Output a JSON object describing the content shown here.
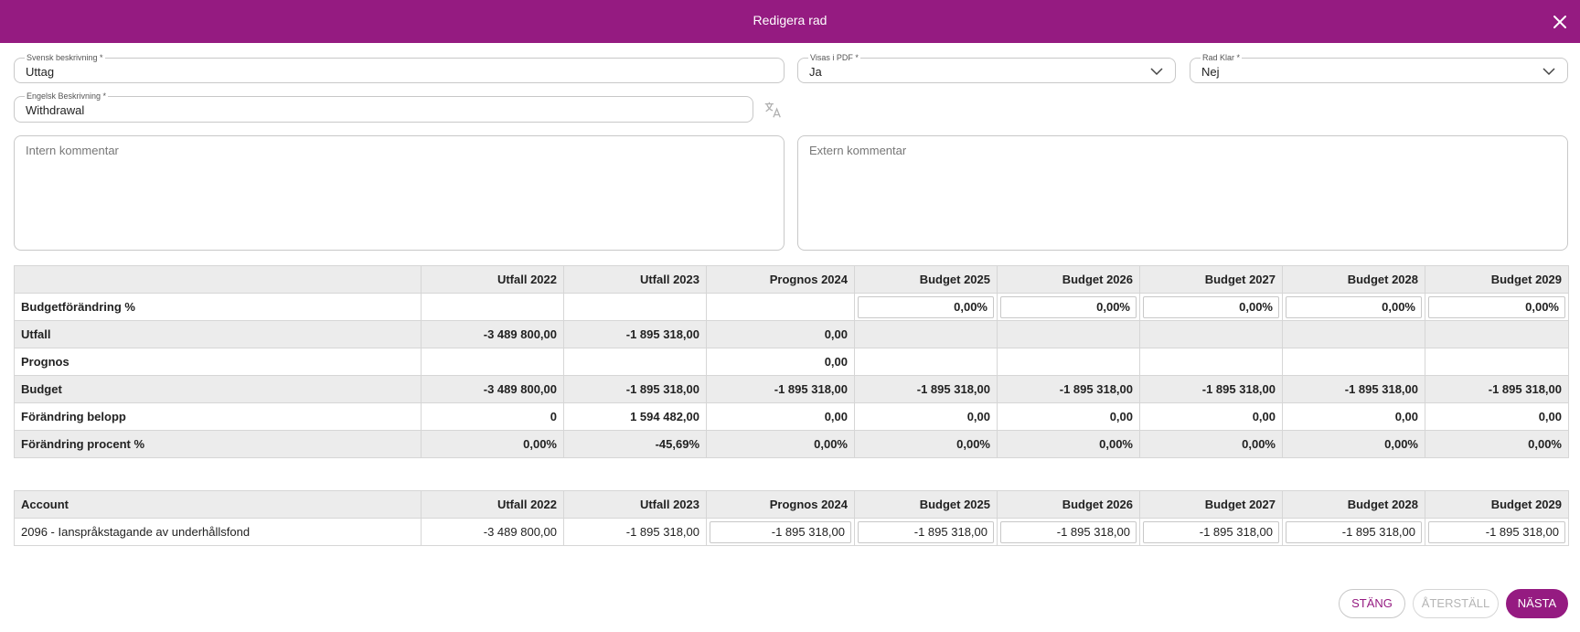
{
  "dialog": {
    "title": "Redigera rad"
  },
  "fields": {
    "svensk": {
      "label": "Svensk beskrivning *",
      "value": "Uttag"
    },
    "pdf": {
      "label": "Visas i PDF *",
      "value": "Ja"
    },
    "klar": {
      "label": "Rad Klar *",
      "value": "Nej"
    },
    "engelsk": {
      "label": "Engelsk Beskrivning *",
      "value": "Withdrawal"
    },
    "intern": {
      "placeholder": "Intern kommentar"
    },
    "extern": {
      "placeholder": "Extern kommentar"
    }
  },
  "summary": {
    "headers": [
      "",
      "Utfall 2022",
      "Utfall 2023",
      "Prognos 2024",
      "Budget 2025",
      "Budget 2026",
      "Budget 2027",
      "Budget 2028",
      "Budget 2029"
    ],
    "rows": [
      {
        "label": "Budgetförändring %",
        "cells": [
          "",
          "",
          "",
          "0,00%",
          "0,00%",
          "0,00%",
          "0,00%",
          "0,00%"
        ]
      },
      {
        "label": "Utfall",
        "cells": [
          "-3 489 800,00",
          "-1 895 318,00",
          "0,00",
          "",
          "",
          "",
          "",
          ""
        ]
      },
      {
        "label": "Prognos",
        "cells": [
          "",
          "",
          "0,00",
          "",
          "",
          "",
          "",
          ""
        ]
      },
      {
        "label": "Budget",
        "cells": [
          "-3 489 800,00",
          "-1 895 318,00",
          "-1 895 318,00",
          "-1 895 318,00",
          "-1 895 318,00",
          "-1 895 318,00",
          "-1 895 318,00",
          "-1 895 318,00"
        ]
      },
      {
        "label": "Förändring belopp",
        "cells": [
          "0",
          "1 594 482,00",
          "0,00",
          "0,00",
          "0,00",
          "0,00",
          "0,00",
          "0,00"
        ]
      },
      {
        "label": "Förändring procent %",
        "cells": [
          "0,00%",
          "-45,69%",
          "0,00%",
          "0,00%",
          "0,00%",
          "0,00%",
          "0,00%",
          "0,00%"
        ]
      }
    ]
  },
  "accounts": {
    "headers": [
      "Account",
      "Utfall 2022",
      "Utfall 2023",
      "Prognos 2024",
      "Budget 2025",
      "Budget 2026",
      "Budget 2027",
      "Budget 2028",
      "Budget 2029"
    ],
    "rows": [
      {
        "label": "2096 - Ianspråkstagande av underhållsfond",
        "cells": [
          "-3 489 800,00",
          "-1 895 318,00",
          "-1 895 318,00",
          "-1 895 318,00",
          "-1 895 318,00",
          "-1 895 318,00",
          "-1 895 318,00",
          "-1 895 318,00"
        ]
      }
    ]
  },
  "buttons": {
    "close": "STÄNG",
    "reset": "ÅTERSTÄLL",
    "next": "NÄSTA"
  },
  "colors": {
    "accent": "#951b81",
    "header_bg": "#ececec"
  }
}
